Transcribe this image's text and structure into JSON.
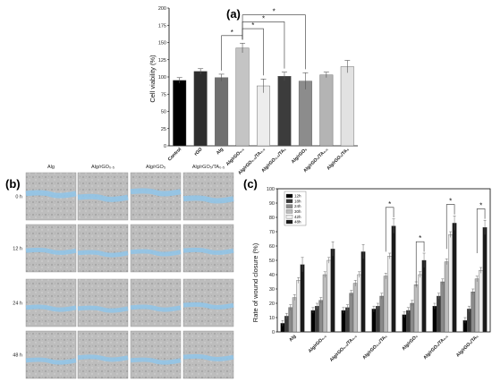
{
  "chart_data": [
    {
      "type": "bar",
      "panel": "(a)",
      "ylabel": "Cell viability (%)",
      "ylim": [
        0,
        200
      ],
      "yticks": [
        "0",
        "25",
        "50",
        "75",
        "100",
        "125",
        "150",
        "175",
        "200"
      ],
      "categories": [
        "Control",
        "rGO",
        "Alg",
        "Alg/rGO₀.₅",
        "Alg/rGO₀.₅/TA₀.₅",
        "Alg/rGO₀.₅/TA₅",
        "Alg/rGO₅",
        "Alg/rGO₅/TA₀.₅",
        "Alg/rGO₅/TA₅"
      ],
      "values": [
        95,
        108,
        99,
        142,
        87,
        101,
        94,
        103,
        115
      ],
      "errors": [
        4,
        4,
        5,
        7,
        10,
        6,
        12,
        4,
        9
      ],
      "colors": [
        "#000000",
        "#2e2e2e",
        "#707070",
        "#c4c4c4",
        "#ededed",
        "#3c3c3c",
        "#8c8c8c",
        "#b4b4b4",
        "#e2e2e2"
      ],
      "significance": [
        {
          "from": 2,
          "to": 3,
          "label": "*"
        },
        {
          "from": 3,
          "to": 4,
          "label": "*"
        },
        {
          "from": 3,
          "to": 5,
          "label": "*"
        },
        {
          "from": 3,
          "to": 6,
          "label": "*"
        }
      ]
    },
    {
      "type": "bar",
      "panel": "(c)",
      "ylabel": "Rate of wound closure (%)",
      "ylim": [
        0,
        100
      ],
      "yticks": [
        "0",
        "10",
        "20",
        "30",
        "40",
        "50",
        "60",
        "70",
        "80",
        "90",
        "100"
      ],
      "categories": [
        "Alg",
        "Alg/rGO₀.₅",
        "Alg/rGO₀.₅/TA₀.₅",
        "Alg/rGO₀.₅/TA₅",
        "Alg/rGO₅",
        "Alg/rGO₅/TA₀.₅",
        "Alg/rGO₅/TA₅"
      ],
      "legend": [
        "12h",
        "18h",
        "24h",
        "30h",
        "42h",
        "48h"
      ],
      "legend_position": "top-left",
      "series_colors": [
        "#000000",
        "#3a3a3a",
        "#8a8a8a",
        "#bcbcbc",
        "#eeeeee",
        "#1a1a1a"
      ],
      "series": [
        {
          "name": "12h",
          "values": [
            6,
            15,
            15,
            16,
            12,
            18,
            8
          ]
        },
        {
          "name": "18h",
          "values": [
            11,
            18,
            17,
            18,
            15,
            25,
            16
          ]
        },
        {
          "name": "24h",
          "values": [
            17,
            22,
            27,
            25,
            20,
            35,
            28
          ]
        },
        {
          "name": "30h",
          "values": [
            24,
            40,
            34,
            39,
            33,
            49,
            37
          ]
        },
        {
          "name": "42h",
          "values": [
            36,
            50,
            40,
            53,
            40,
            68,
            43
          ]
        },
        {
          "name": "48h",
          "values": [
            47,
            58,
            56,
            74,
            50,
            76,
            73
          ]
        }
      ],
      "significance_groups": [
        3,
        4,
        5,
        6
      ]
    }
  ],
  "panel_b": {
    "label": "(b)",
    "columns": [
      "Alg",
      "Alg/rGO₀.₅",
      "Alg/rGO₅",
      "Alg/rGO₅/TA₀.₅"
    ],
    "rows": [
      "0 h",
      "12 h",
      "24 h",
      "48 h"
    ]
  }
}
